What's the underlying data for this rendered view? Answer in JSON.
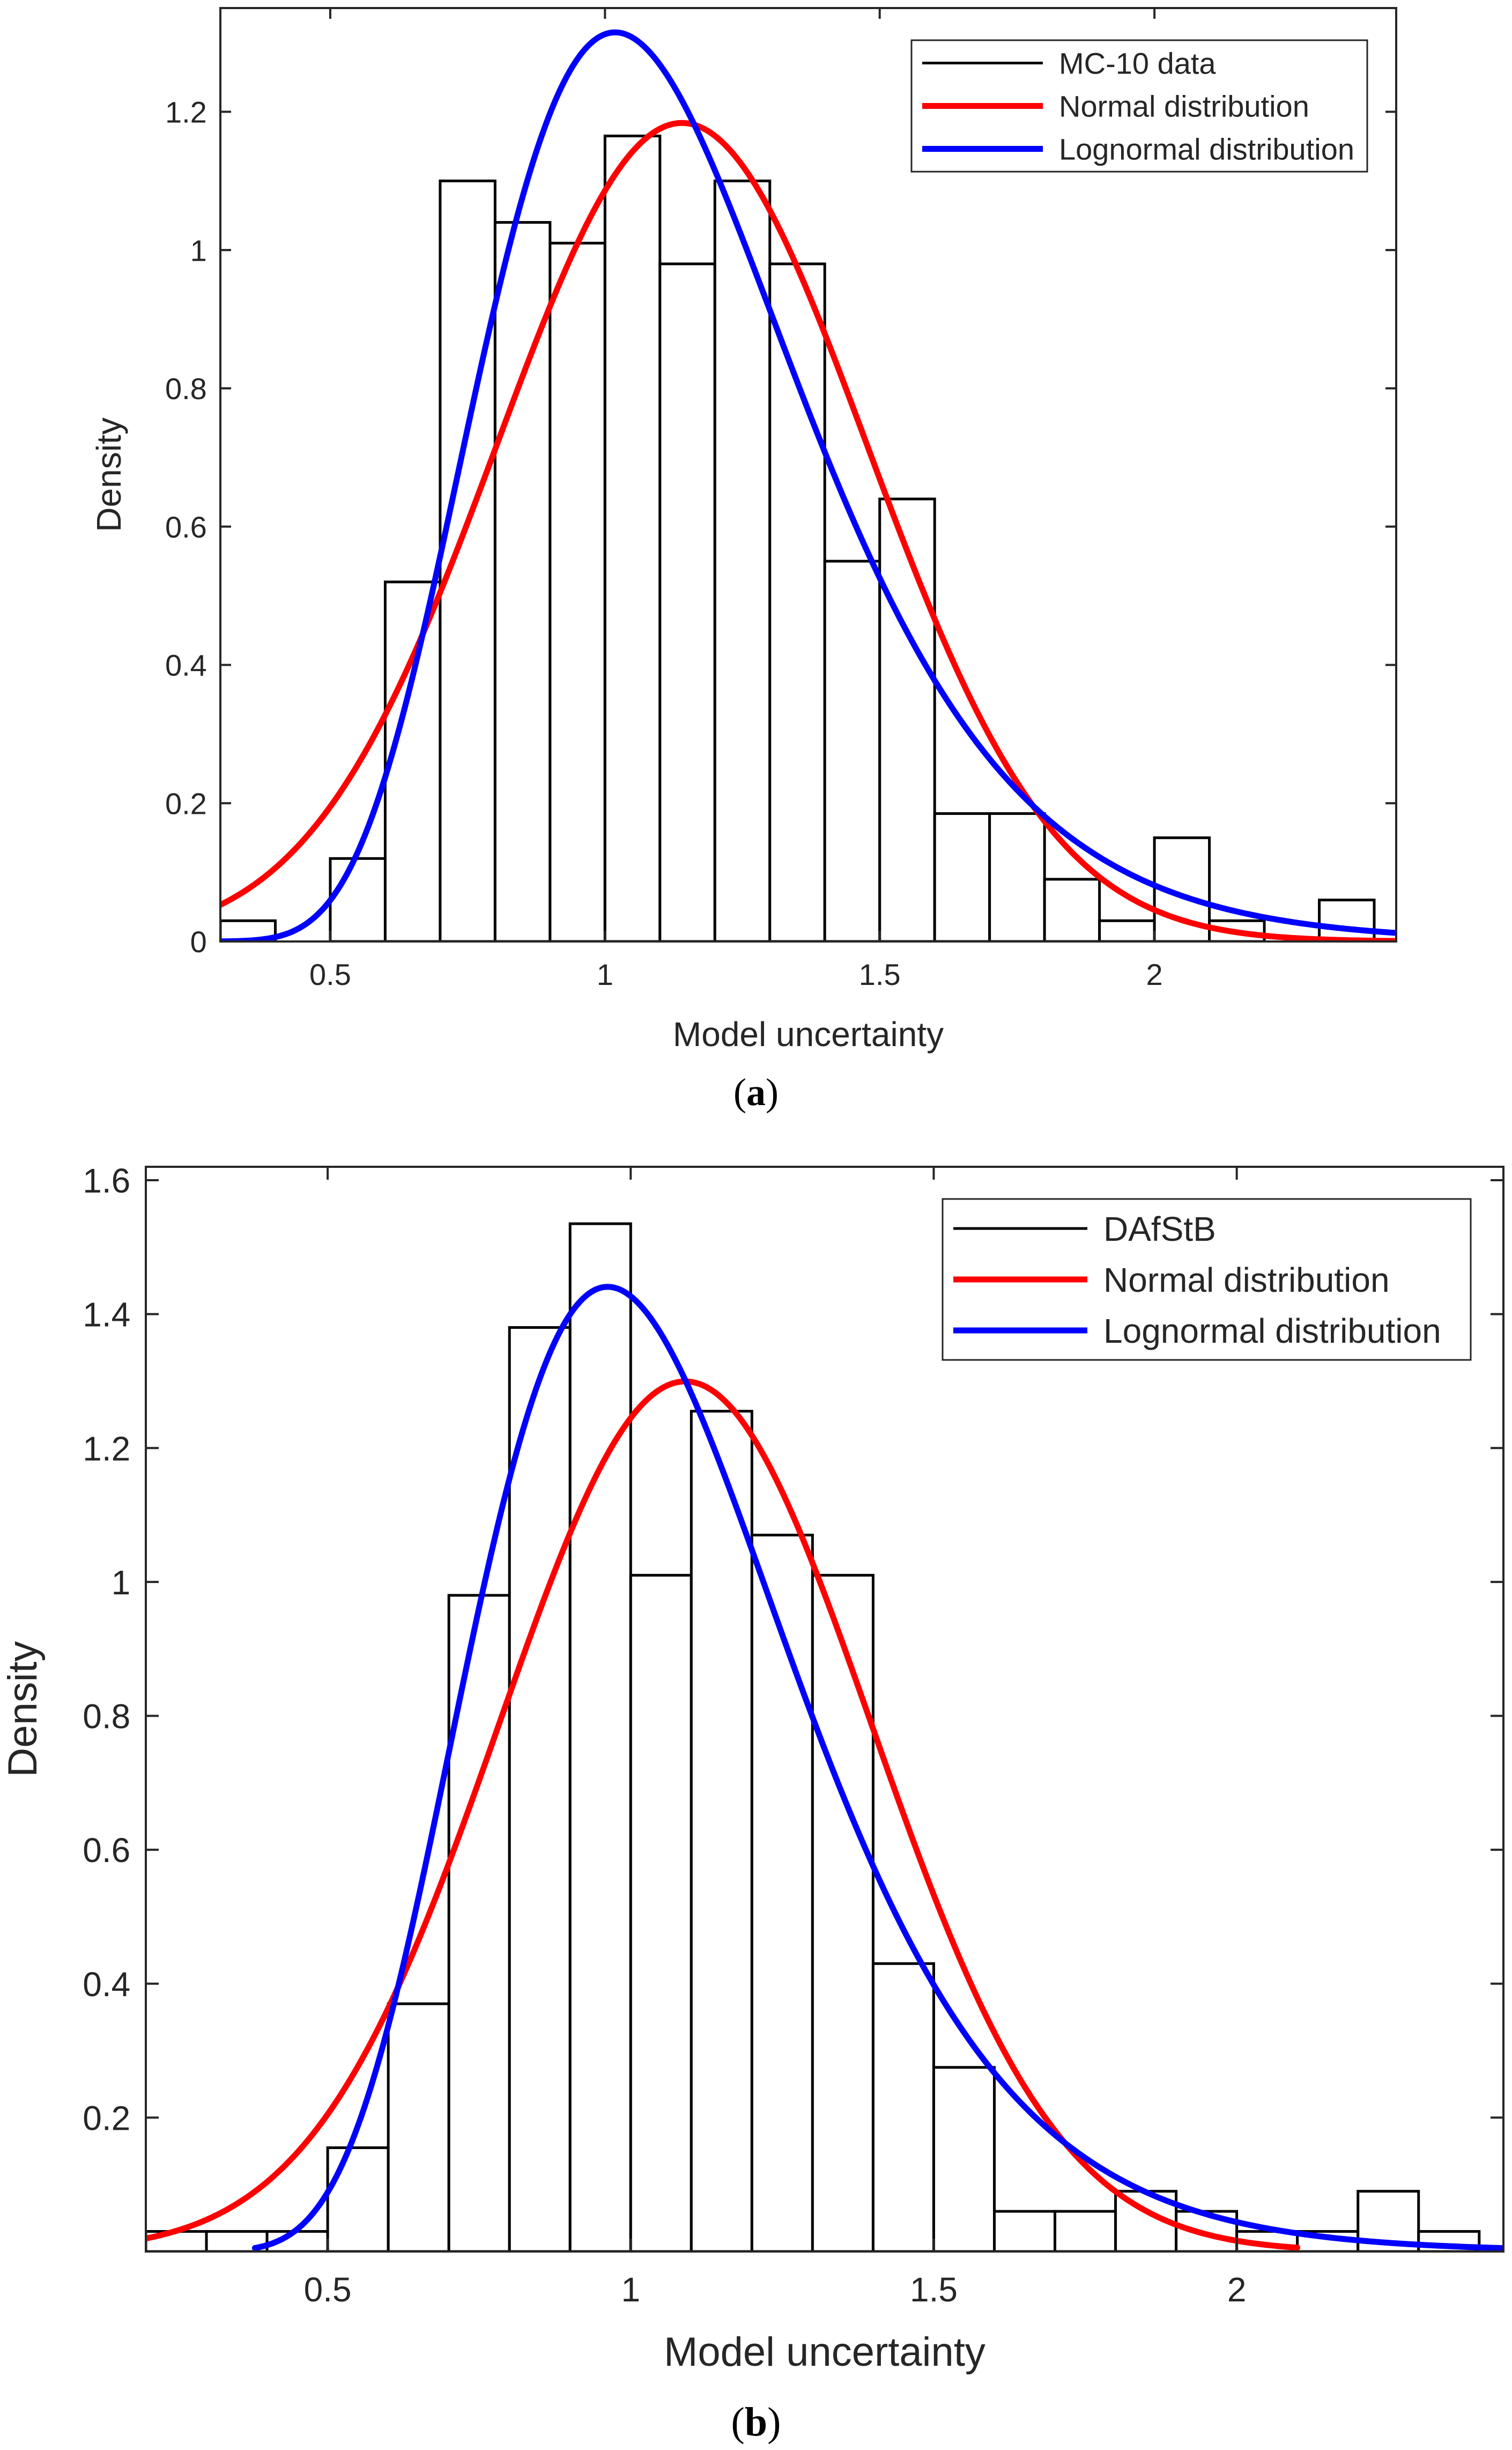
{
  "colors": {
    "data": "#000000",
    "normal": "#ff0000",
    "lognormal": "#0000ff",
    "axes": "#262626"
  },
  "chart_data": [
    {
      "type": "bar",
      "panel_label": "a",
      "xlabel": "Model uncertainty",
      "ylabel": "Density",
      "xlim": [
        0.3,
        2.44
      ],
      "ylim": [
        0,
        1.35
      ],
      "xticks": [
        0.5,
        1,
        1.5,
        2
      ],
      "xtick_labels": [
        "0.5",
        "1",
        "1.5",
        "2"
      ],
      "yticks": [
        0,
        0.2,
        0.4,
        0.6,
        0.8,
        1,
        1.2
      ],
      "ytick_labels": [
        "0",
        "0.2",
        "0.4",
        "0.6",
        "0.8",
        "1",
        "1.2"
      ],
      "grid": false,
      "legend_position": "top-right",
      "bin_edges": [
        0.3,
        0.4,
        0.5,
        0.6,
        0.7,
        0.8,
        0.9,
        1.0,
        1.1,
        1.2,
        1.3,
        1.4,
        1.5,
        1.6,
        1.7,
        1.8,
        1.9,
        2.0,
        2.1,
        2.2,
        2.3,
        2.4
      ],
      "values": [
        0.03,
        0.0,
        0.12,
        0.52,
        1.1,
        1.04,
        1.01,
        1.165,
        0.98,
        1.1,
        0.98,
        0.55,
        0.64,
        0.185,
        0.185,
        0.09,
        0.03,
        0.15,
        0.03,
        0.0,
        0.06
      ],
      "series": [
        {
          "name": "MC-10 data",
          "kind": "histogram",
          "color": "#000000"
        },
        {
          "name": "Normal distribution",
          "kind": "normal",
          "mean": 1.14,
          "sd": 0.337,
          "x_range": [
            0.3,
            2.44
          ],
          "color": "#ff0000"
        },
        {
          "name": "Lognormal distribution",
          "kind": "lognormal",
          "mu": 0.1,
          "sigma": 0.286,
          "x_range": [
            0.3,
            2.44
          ],
          "color": "#0000ff"
        }
      ],
      "legend": [
        "MC-10 data",
        "Normal distribution",
        "Lognormal distribution"
      ]
    },
    {
      "type": "bar",
      "panel_label": "b",
      "xlabel": "Model uncertainty",
      "ylabel": "Density",
      "xlim": [
        0.2,
        2.44
      ],
      "ylim": [
        0,
        1.62
      ],
      "xticks": [
        0.5,
        1,
        1.5,
        2
      ],
      "xtick_labels": [
        "0.5",
        "1",
        "1.5",
        "2"
      ],
      "yticks": [
        0.2,
        0.4,
        0.6,
        0.8,
        1,
        1.2,
        1.4,
        1.6
      ],
      "ytick_labels": [
        "0.2",
        "0.4",
        "0.6",
        "0.8",
        "1",
        "1.2",
        "1.4",
        "1.6"
      ],
      "grid": false,
      "legend_position": "top-right",
      "bin_edges": [
        0.2,
        0.3,
        0.4,
        0.5,
        0.6,
        0.7,
        0.8,
        0.9,
        1.0,
        1.1,
        1.2,
        1.3,
        1.4,
        1.5,
        1.6,
        1.7,
        1.8,
        1.9,
        2.0,
        2.1,
        2.2,
        2.3,
        2.4
      ],
      "values": [
        0.03,
        0.03,
        0.03,
        0.155,
        0.37,
        0.98,
        1.38,
        1.535,
        1.01,
        1.255,
        1.07,
        1.01,
        0.43,
        0.275,
        0.06,
        0.06,
        0.09,
        0.06,
        0.03,
        0.03,
        0.09,
        0.03
      ],
      "series": [
        {
          "name": "DAfStB",
          "kind": "histogram",
          "color": "#000000"
        },
        {
          "name": "Normal distribution",
          "kind": "normal",
          "mean": 1.09,
          "sd": 0.307,
          "x_range": [
            0.2,
            2.1
          ],
          "color": "#ff0000"
        },
        {
          "name": "Lognormal distribution",
          "kind": "lognormal",
          "mu": 0.038,
          "sigma": 0.277,
          "x_range": [
            0.38,
            2.44
          ],
          "color": "#0000ff"
        }
      ],
      "legend": [
        "DAfStB",
        "Normal distribution",
        "Lognormal distribution"
      ]
    }
  ]
}
